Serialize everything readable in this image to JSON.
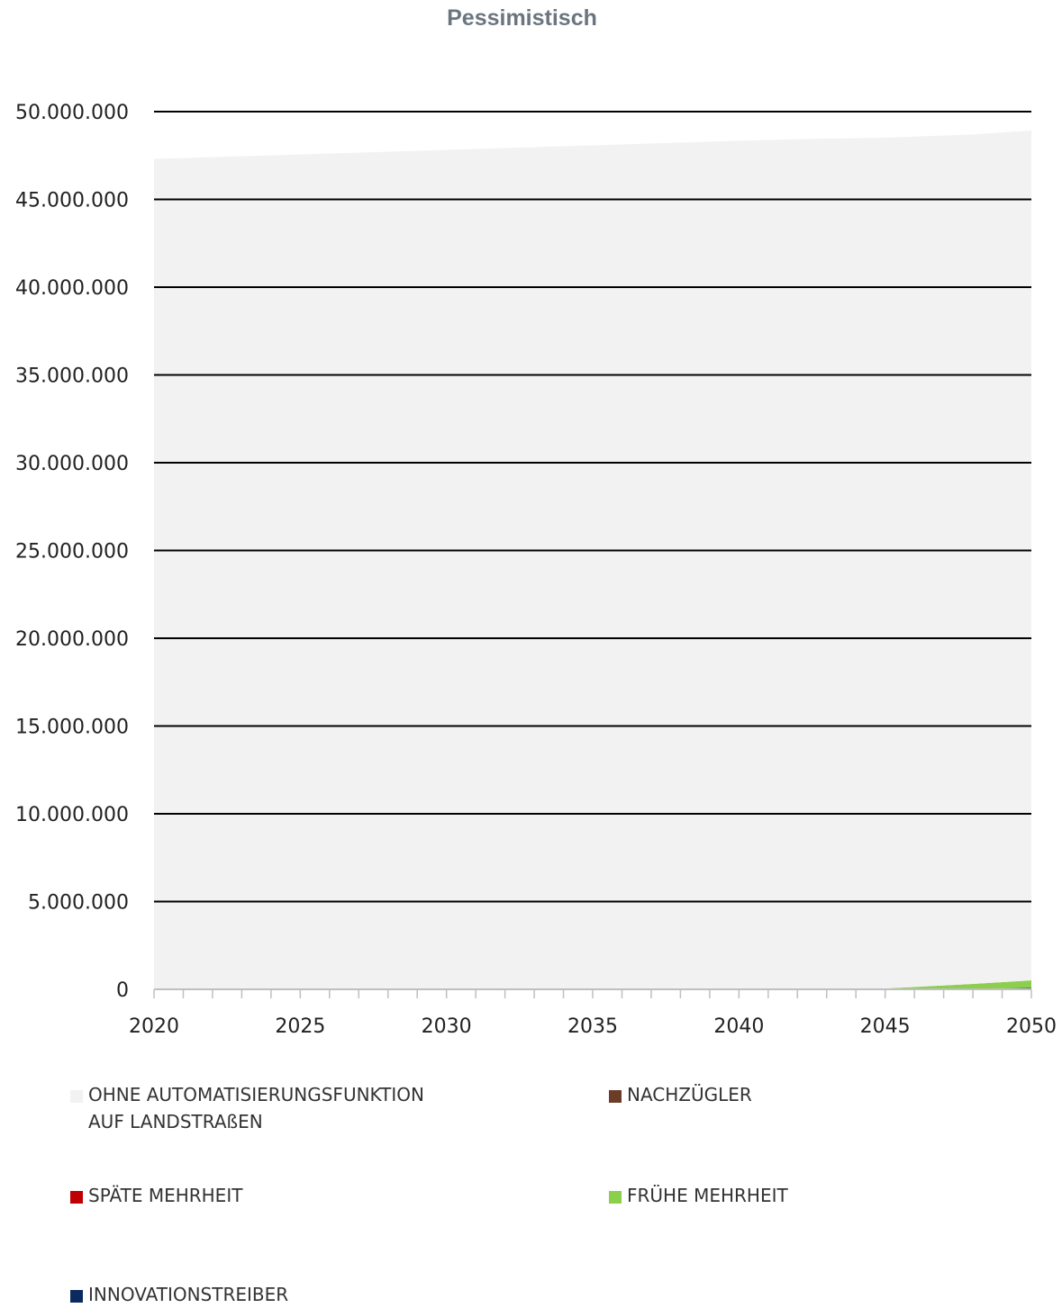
{
  "chart_data": {
    "type": "area",
    "stacked": true,
    "title": "Pessimistisch",
    "xlabel": "",
    "ylabel": "",
    "x": [
      2020,
      2025,
      2030,
      2035,
      2040,
      2042,
      2044,
      2045,
      2046,
      2048,
      2050
    ],
    "x_ticks": [
      "2020",
      "2025",
      "2030",
      "2035",
      "2040",
      "2045",
      "2050"
    ],
    "y_ticks": [
      "0",
      "5.000.000",
      "10.000.000",
      "15.000.000",
      "20.000.000",
      "25.000.000",
      "30.000.000",
      "35.000.000",
      "40.000.000",
      "45.000.000",
      "50.000.000"
    ],
    "ylim": [
      0,
      50000000
    ],
    "grid": true,
    "legend_position": "bottom",
    "series": [
      {
        "name": "INNOVATIONSTREIBER",
        "color": "#0d2a5e",
        "values": [
          0,
          0,
          0,
          0,
          0,
          0,
          0,
          0,
          10000,
          40000,
          80000
        ]
      },
      {
        "name": "FRÜHE MEHRHEIT",
        "color": "#8ccf4d",
        "values": [
          0,
          0,
          0,
          0,
          0,
          0,
          20000,
          50000,
          120000,
          270000,
          430000
        ]
      },
      {
        "name": "SPÄTE MEHRHEIT",
        "color": "#c00000",
        "values": [
          0,
          0,
          0,
          0,
          0,
          0,
          0,
          0,
          0,
          0,
          0
        ]
      },
      {
        "name": "NACHZÜGLER",
        "color": "#6b3d28",
        "values": [
          0,
          0,
          0,
          0,
          0,
          0,
          0,
          0,
          0,
          0,
          0
        ]
      },
      {
        "name": "OHNE AUTOMATISIERUNGSFUNKTION AUF LANDSTRAßEN",
        "color": "#f2f2f2",
        "values": [
          47300000,
          47560000,
          47820000,
          48080000,
          48340000,
          48430000,
          48470000,
          48460000,
          48450000,
          48390000,
          48420000
        ]
      }
    ],
    "legend": [
      {
        "name": "OHNE AUTOMATISIERUNGSFUNKTION",
        "name_cont": "AUF LANDSTRAßEN",
        "color": "#f2f2f2"
      },
      {
        "name": "NACHZÜGLER",
        "color": "#6b3d28"
      },
      {
        "name": "SPÄTE MEHRHEIT",
        "color": "#c00000"
      },
      {
        "name": "FRÜHE MEHRHEIT",
        "color": "#8ccf4d"
      },
      {
        "name": "INNOVATIONSTREIBER",
        "color": "#0d2a5e"
      }
    ]
  }
}
